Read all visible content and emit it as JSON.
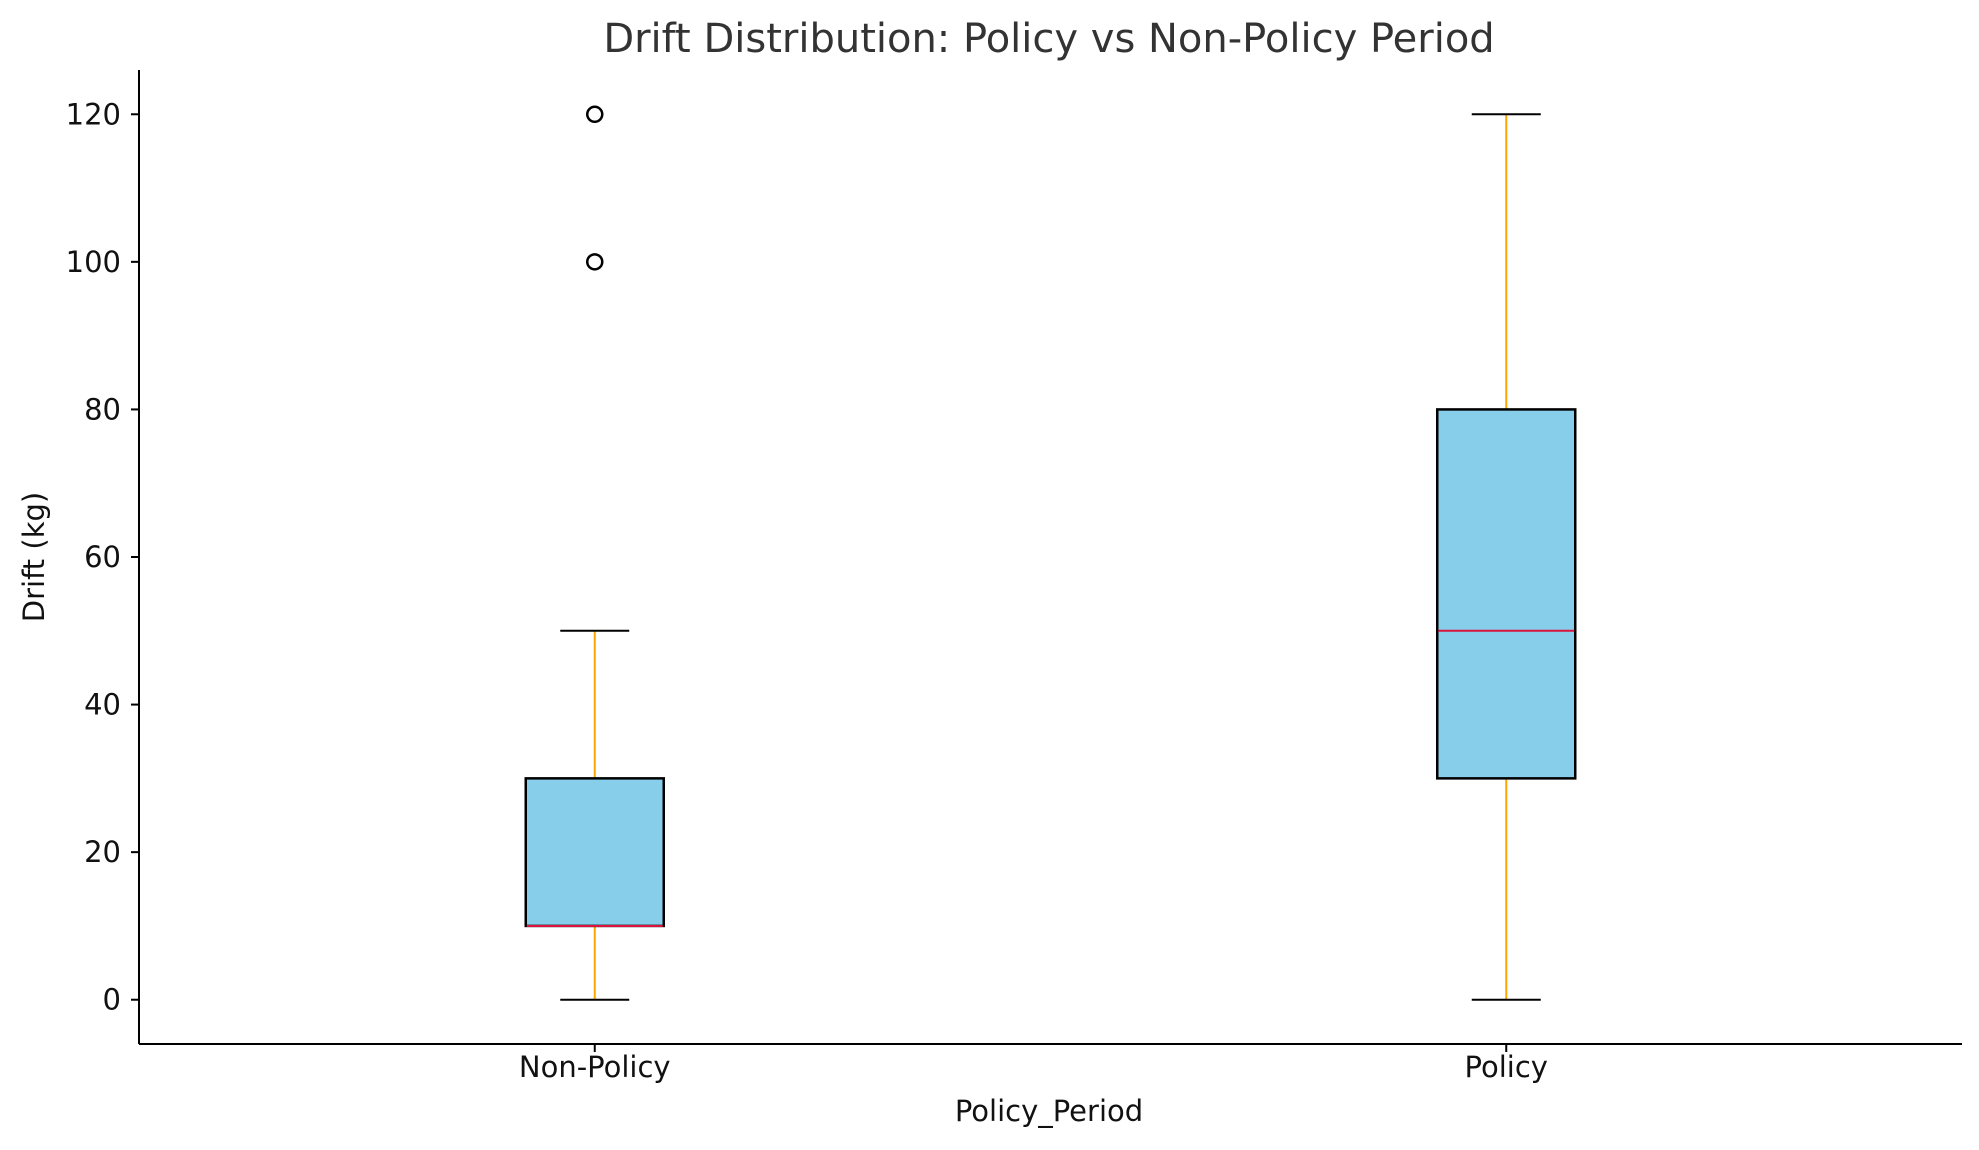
{
  "chart_data": {
    "type": "box",
    "title": "Drift Distribution: Policy vs Non-Policy Period",
    "xlabel": "Policy_Period",
    "ylabel": "Drift (kg)",
    "ylim": [
      -6,
      126
    ],
    "yticks": [
      0,
      20,
      40,
      60,
      80,
      100,
      120
    ],
    "grid": false,
    "categories": [
      "Non-Policy",
      "Policy"
    ],
    "boxes": [
      {
        "category": "Non-Policy",
        "whisker_low": 0,
        "q1": 10,
        "median": 10,
        "q3": 30,
        "whisker_high": 50,
        "outliers": [
          100,
          120
        ]
      },
      {
        "category": "Policy",
        "whisker_low": 0,
        "q1": 30,
        "median": 50,
        "q3": 80,
        "whisker_high": 120,
        "outliers": []
      }
    ],
    "colors": {
      "box_fill": "#87CEEB",
      "box_edge": "#000000",
      "whisker": "#FFA500",
      "cap": "#000000",
      "median": "#DC143C",
      "flier": "#000000"
    }
  }
}
